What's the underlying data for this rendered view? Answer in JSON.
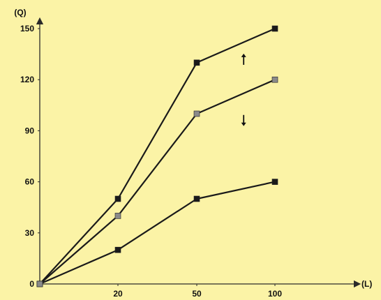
{
  "colors": {
    "background": "#fbf3a6",
    "axis": "#2a2a2a",
    "line": "#1a1a1a",
    "marker_dark": "#1a1a1a",
    "marker_gray": "#8a8a8a"
  },
  "chart_data": {
    "type": "line",
    "title": "",
    "xlabel": "(L)",
    "ylabel": "(Q)",
    "x": [
      0,
      20,
      50,
      100
    ],
    "xticks": [
      20,
      50,
      100
    ],
    "yticks": [
      0,
      30,
      60,
      90,
      120,
      150
    ],
    "xlim": [
      0,
      100
    ],
    "ylim": [
      0,
      150
    ],
    "x_scale": "categorical",
    "grid": false,
    "series": [
      {
        "values": [
          0,
          50,
          130,
          150
        ],
        "marker": "dark"
      },
      {
        "values": [
          0,
          40,
          100,
          120
        ],
        "marker": "gray"
      },
      {
        "values": [
          0,
          20,
          50,
          60
        ],
        "marker": "dark"
      }
    ],
    "annotations": [
      {
        "type": "arrow-up",
        "at_x": 80,
        "at_y": 132
      },
      {
        "type": "arrow-down",
        "at_x": 80,
        "at_y": 96
      }
    ]
  }
}
